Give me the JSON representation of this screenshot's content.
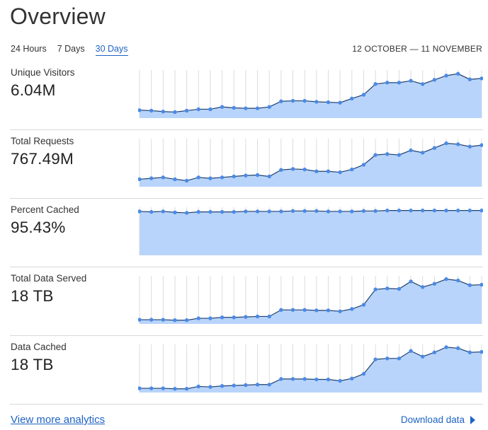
{
  "title": "Overview",
  "tabs": [
    {
      "label": "24 Hours",
      "active": false
    },
    {
      "label": "7 Days",
      "active": false
    },
    {
      "label": "30 Days",
      "active": true
    }
  ],
  "date_range": "12 OCTOBER — 11 NOVEMBER",
  "colors": {
    "accent": "#1e63c4",
    "area_fill": "#b8d4fb",
    "line": "#1f3f6b",
    "point": "#4a8ae6",
    "gridline": "#dcdcdc"
  },
  "metrics": [
    {
      "label": "Unique Visitors",
      "value": "6.04M"
    },
    {
      "label": "Total Requests",
      "value": "767.49M"
    },
    {
      "label": "Percent Cached",
      "value": "95.43%"
    },
    {
      "label": "Total Data Served",
      "value": "18 TB"
    },
    {
      "label": "Data Cached",
      "value": "18 TB"
    }
  ],
  "chart_data": [
    {
      "type": "area",
      "ylim": [
        0,
        100
      ],
      "values": [
        17,
        16,
        14,
        13,
        16,
        19,
        19,
        24,
        22,
        21,
        21,
        24,
        36,
        37,
        37,
        35,
        34,
        33,
        42,
        50,
        73,
        76,
        76,
        80,
        73,
        82,
        91,
        95,
        83,
        85
      ]
    },
    {
      "type": "area",
      "ylim": [
        0,
        100
      ],
      "values": [
        16,
        18,
        20,
        16,
        13,
        20,
        18,
        20,
        22,
        24,
        25,
        22,
        36,
        38,
        37,
        33,
        33,
        31,
        37,
        47,
        68,
        70,
        68,
        78,
        73,
        83,
        93,
        91,
        86,
        89
      ]
    },
    {
      "type": "area",
      "ylim": [
        0,
        100
      ],
      "values": [
        94,
        93,
        94,
        92,
        91,
        93,
        93,
        93,
        93,
        94,
        94,
        94,
        94,
        95,
        95,
        95,
        94,
        94,
        94,
        95,
        95,
        96,
        96,
        96,
        96,
        96,
        96,
        96,
        96,
        96
      ]
    },
    {
      "type": "area",
      "ylim": [
        0,
        100
      ],
      "values": [
        9,
        9,
        9,
        8,
        8,
        12,
        12,
        14,
        14,
        15,
        16,
        16,
        30,
        30,
        30,
        29,
        29,
        27,
        32,
        41,
        74,
        76,
        75,
        91,
        79,
        86,
        96,
        93,
        83,
        84
      ]
    },
    {
      "type": "area",
      "ylim": [
        0,
        100
      ],
      "values": [
        9,
        9,
        9,
        8,
        8,
        13,
        12,
        14,
        15,
        16,
        17,
        17,
        29,
        29,
        29,
        28,
        28,
        25,
        30,
        40,
        71,
        73,
        73,
        89,
        77,
        86,
        97,
        95,
        86,
        87
      ]
    }
  ],
  "footer": {
    "more_link": "View more analytics",
    "download_label": "Download data"
  }
}
